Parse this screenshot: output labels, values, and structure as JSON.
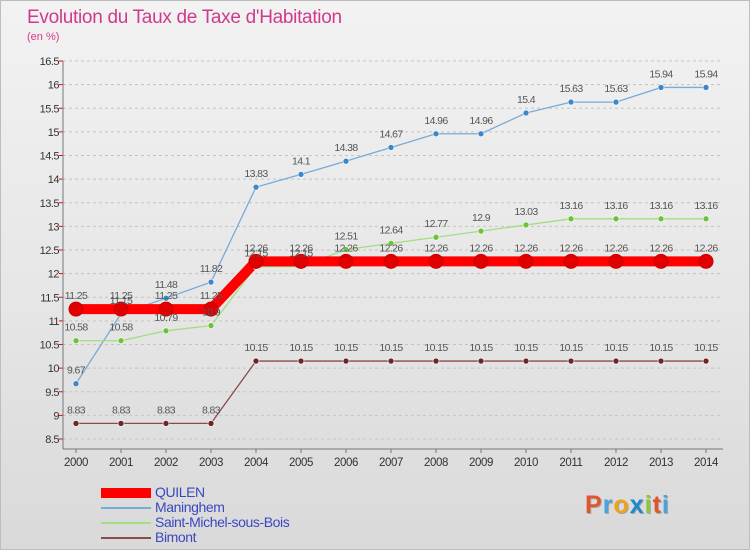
{
  "title": "Evolution du Taux de Taxe d'Habitation",
  "subtitle": "(en %)",
  "logo_text": "Proxiti",
  "logo_colors": [
    "#e0562a",
    "#4aa3df",
    "#f0a21b",
    "#1e88c8",
    "#8cc63f",
    "#e0562a",
    "#4aa3df"
  ],
  "chart_data": {
    "type": "line",
    "x": [
      "2000",
      "2001",
      "2002",
      "2003",
      "2004",
      "2005",
      "2006",
      "2007",
      "2008",
      "2009",
      "2010",
      "2011",
      "2012",
      "2013",
      "2014"
    ],
    "y_ticks": [
      "8.5",
      "9",
      "9.5",
      "10",
      "10.5",
      "11",
      "11.5",
      "12",
      "12.5",
      "13",
      "13.5",
      "14",
      "14.5",
      "15",
      "15.5",
      "16",
      "16.5"
    ],
    "ylim": [
      8.5,
      16.5
    ],
    "grid": "horizontal dashed",
    "legend_position": "bottom-left",
    "series": [
      {
        "name": "Maninghem",
        "color": "#7aaad8",
        "marker_color": "#3d87c8",
        "values": [
          9.67,
          11.15,
          11.48,
          11.82,
          13.83,
          14.1,
          14.38,
          14.67,
          14.96,
          14.96,
          15.4,
          15.63,
          15.63,
          15.94,
          15.94
        ],
        "labels": [
          "9.67",
          "11.15",
          "11.48",
          "11.82",
          "13.83",
          "14.1",
          "14.38",
          "14.67",
          "14.96",
          "14.96",
          "15.4",
          "15.63",
          "15.63",
          "15.94",
          "15.94"
        ]
      },
      {
        "name": "Saint-Michel-sous-Bois",
        "color": "#a2dd82",
        "marker_color": "#6dc23c",
        "values": [
          10.58,
          10.58,
          10.79,
          10.9,
          12.15,
          12.15,
          12.51,
          12.64,
          12.77,
          12.9,
          13.03,
          13.16,
          13.16,
          13.16,
          13.16
        ],
        "labels": [
          "10.58",
          "10.58",
          "10.79",
          "10.9",
          "12.15",
          "12.15",
          "12.51",
          "12.64",
          "12.77",
          "12.9",
          "13.03",
          "13.16",
          "13.16",
          "13.16",
          "13.16"
        ]
      },
      {
        "name": "Bimont",
        "color": "#8c4a4a",
        "marker_color": "#6d2626",
        "values": [
          8.83,
          8.83,
          8.83,
          8.83,
          10.15,
          10.15,
          10.15,
          10.15,
          10.15,
          10.15,
          10.15,
          10.15,
          10.15,
          10.15,
          10.15
        ],
        "labels": [
          "8.83",
          "8.83",
          "8.83",
          "8.83",
          "10.15",
          "10.15",
          "10.15",
          "10.15",
          "10.15",
          "10.15",
          "10.15",
          "10.15",
          "10.15",
          "10.15",
          "10.15"
        ]
      },
      {
        "name": "QUILEN",
        "color": "#ff0000",
        "marker_color": "#e00000",
        "values": [
          11.25,
          11.25,
          11.25,
          11.25,
          12.26,
          12.26,
          12.26,
          12.26,
          12.26,
          12.26,
          12.26,
          12.26,
          12.26,
          12.26,
          12.26
        ],
        "labels": [
          "11.25",
          "11.25",
          "11.25",
          "11.25",
          "12.26",
          "12.26",
          "12.26",
          "12.26",
          "12.26",
          "12.26",
          "12.26",
          "12.26",
          "12.26",
          "12.26",
          "12.26"
        ]
      }
    ],
    "legend_order": [
      "QUILEN",
      "Maninghem",
      "Saint-Michel-sous-Bois",
      "Bimont"
    ]
  }
}
